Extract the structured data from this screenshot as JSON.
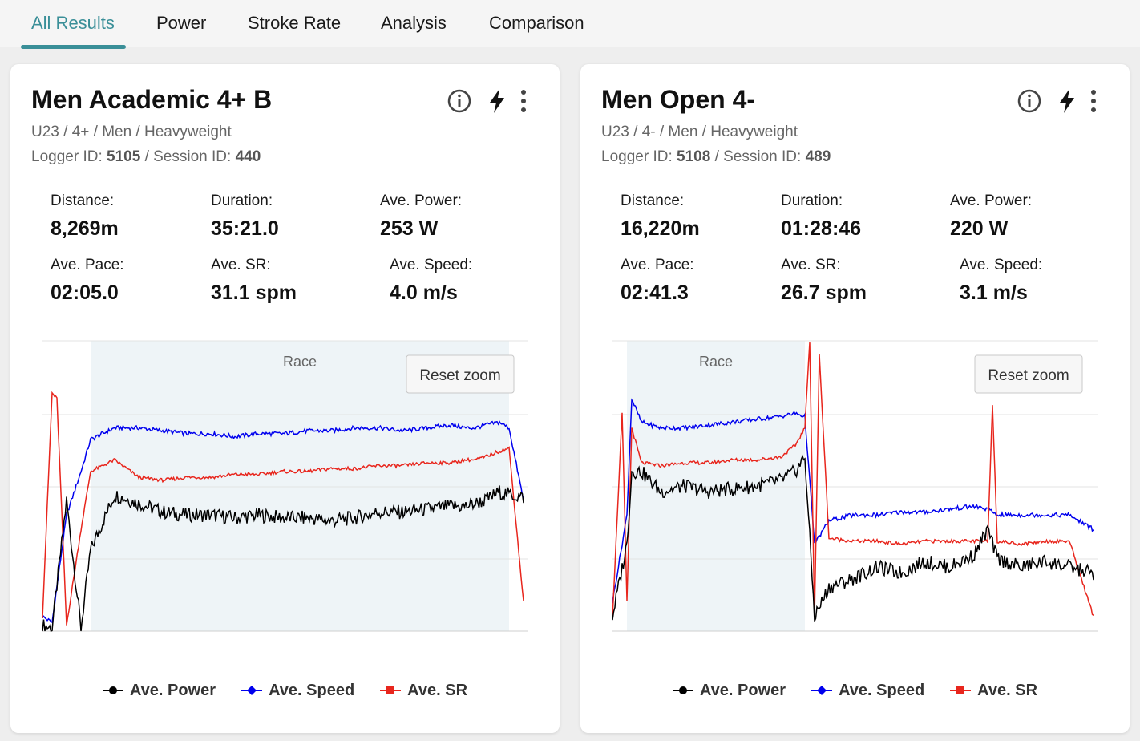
{
  "tabs": [
    {
      "label": "All Results",
      "active": true
    },
    {
      "label": "Power",
      "active": false
    },
    {
      "label": "Stroke Rate",
      "active": false
    },
    {
      "label": "Analysis",
      "active": false
    },
    {
      "label": "Comparison",
      "active": false
    }
  ],
  "colors": {
    "accent": "#3a8f98",
    "power": "#000000",
    "speed": "#0000ee",
    "sr": "#e8261d",
    "race_band": "#eef4f7"
  },
  "cards": [
    {
      "title": "Men Academic 4+ B",
      "subtitle": "U23 / 4+ / Men / Heavyweight",
      "logger_label": "Logger ID:",
      "logger_id": "5105",
      "session_label": "/ Session ID:",
      "session_id": "440",
      "icons": [
        "info-icon",
        "lightning-icon",
        "more-vert-icon"
      ],
      "stats": [
        {
          "label": "Distance:",
          "value": "8,269m"
        },
        {
          "label": "Duration:",
          "value": "35:21.0"
        },
        {
          "label": "Ave. Power:",
          "value": "253 W"
        },
        {
          "label": "Ave. Pace:",
          "value": "02:05.0"
        },
        {
          "label": "Ave. SR:",
          "value": "31.1 spm"
        },
        {
          "label": "Ave. Speed:",
          "value": "4.0 m/s"
        }
      ],
      "race_label": "Race",
      "reset_zoom_label": "Reset zoom",
      "legend": [
        "Ave. Power",
        "Ave. Speed",
        "Ave. SR"
      ]
    },
    {
      "title": "Men Open 4-",
      "subtitle": "U23 / 4- / Men / Heavyweight",
      "logger_label": "Logger ID:",
      "logger_id": "5108",
      "session_label": "/ Session ID:",
      "session_id": "489",
      "icons": [
        "info-icon",
        "lightning-icon",
        "more-vert-icon"
      ],
      "stats": [
        {
          "label": "Distance:",
          "value": "16,220m"
        },
        {
          "label": "Duration:",
          "value": "01:28:46"
        },
        {
          "label": "Ave. Power:",
          "value": "220 W"
        },
        {
          "label": "Ave. Pace:",
          "value": "02:41.3"
        },
        {
          "label": "Ave. SR:",
          "value": "26.7 spm"
        },
        {
          "label": "Ave. Speed:",
          "value": "3.1 m/s"
        }
      ],
      "race_label": "Race",
      "reset_zoom_label": "Reset zoom",
      "legend": [
        "Ave. Power",
        "Ave. Speed",
        "Ave. SR"
      ]
    }
  ],
  "chart_data": [
    {
      "type": "line",
      "series": [
        {
          "name": "Ave. Power",
          "x": [
            0.0,
            0.02,
            0.05,
            0.08,
            0.1,
            0.15,
            0.2,
            0.25,
            0.3,
            0.35,
            0.4,
            0.45,
            0.5,
            0.55,
            0.6,
            0.65,
            0.7,
            0.75,
            0.8,
            0.85,
            0.88,
            0.9,
            0.92,
            0.95,
            0.97,
            1.0
          ],
          "y": [
            0.02,
            0.01,
            0.45,
            0.01,
            0.28,
            0.47,
            0.44,
            0.41,
            0.4,
            0.4,
            0.39,
            0.4,
            0.39,
            0.39,
            0.38,
            0.39,
            0.41,
            0.41,
            0.42,
            0.43,
            0.43,
            0.44,
            0.45,
            0.48,
            0.47,
            0.46
          ]
        },
        {
          "name": "Ave. Speed",
          "x": [
            0.0,
            0.02,
            0.05,
            0.08,
            0.1,
            0.15,
            0.2,
            0.25,
            0.3,
            0.35,
            0.4,
            0.45,
            0.5,
            0.55,
            0.6,
            0.65,
            0.7,
            0.75,
            0.8,
            0.85,
            0.88,
            0.9,
            0.92,
            0.95,
            0.97,
            1.0
          ],
          "y": [
            0.05,
            0.03,
            0.4,
            0.55,
            0.66,
            0.7,
            0.7,
            0.69,
            0.68,
            0.68,
            0.67,
            0.68,
            0.68,
            0.69,
            0.69,
            0.7,
            0.7,
            0.69,
            0.7,
            0.71,
            0.7,
            0.7,
            0.71,
            0.72,
            0.7,
            0.45
          ]
        },
        {
          "name": "Ave. SR",
          "x": [
            0.0,
            0.02,
            0.03,
            0.05,
            0.08,
            0.1,
            0.15,
            0.2,
            0.25,
            0.3,
            0.35,
            0.4,
            0.45,
            0.5,
            0.55,
            0.6,
            0.65,
            0.7,
            0.75,
            0.8,
            0.85,
            0.88,
            0.9,
            0.92,
            0.95,
            0.97,
            1.0
          ],
          "y": [
            0.05,
            0.82,
            0.8,
            0.02,
            0.35,
            0.55,
            0.59,
            0.53,
            0.52,
            0.53,
            0.53,
            0.54,
            0.54,
            0.55,
            0.55,
            0.56,
            0.56,
            0.57,
            0.57,
            0.58,
            0.58,
            0.59,
            0.59,
            0.6,
            0.62,
            0.63,
            0.1
          ]
        }
      ],
      "race_range": [
        0.1,
        0.97
      ]
    },
    {
      "type": "line",
      "series": [
        {
          "name": "Ave. Power",
          "x": [
            0.0,
            0.03,
            0.04,
            0.06,
            0.1,
            0.15,
            0.2,
            0.25,
            0.3,
            0.35,
            0.38,
            0.4,
            0.42,
            0.45,
            0.5,
            0.55,
            0.6,
            0.65,
            0.7,
            0.75,
            0.78,
            0.8,
            0.85,
            0.9,
            0.95,
            1.0
          ],
          "y": [
            0.05,
            0.3,
            0.55,
            0.55,
            0.48,
            0.5,
            0.48,
            0.49,
            0.5,
            0.52,
            0.55,
            0.6,
            0.05,
            0.15,
            0.18,
            0.22,
            0.2,
            0.24,
            0.22,
            0.26,
            0.35,
            0.25,
            0.22,
            0.24,
            0.22,
            0.2
          ]
        },
        {
          "name": "Ave. Speed",
          "x": [
            0.0,
            0.03,
            0.04,
            0.06,
            0.1,
            0.15,
            0.2,
            0.25,
            0.3,
            0.35,
            0.38,
            0.4,
            0.42,
            0.45,
            0.5,
            0.55,
            0.6,
            0.65,
            0.7,
            0.75,
            0.78,
            0.8,
            0.85,
            0.9,
            0.95,
            1.0
          ],
          "y": [
            0.1,
            0.4,
            0.8,
            0.72,
            0.7,
            0.7,
            0.71,
            0.72,
            0.73,
            0.74,
            0.75,
            0.74,
            0.3,
            0.38,
            0.4,
            0.4,
            0.41,
            0.41,
            0.42,
            0.43,
            0.42,
            0.4,
            0.4,
            0.4,
            0.4,
            0.35
          ]
        },
        {
          "name": "Ave. SR",
          "x": [
            0.0,
            0.02,
            0.03,
            0.04,
            0.06,
            0.1,
            0.15,
            0.2,
            0.25,
            0.3,
            0.35,
            0.38,
            0.4,
            0.41,
            0.42,
            0.43,
            0.45,
            0.5,
            0.55,
            0.6,
            0.65,
            0.7,
            0.75,
            0.78,
            0.79,
            0.8,
            0.85,
            0.9,
            0.95,
            1.0
          ],
          "y": [
            0.05,
            0.75,
            0.1,
            0.7,
            0.58,
            0.57,
            0.58,
            0.58,
            0.59,
            0.59,
            0.6,
            0.64,
            0.7,
            1.0,
            0.05,
            0.95,
            0.32,
            0.31,
            0.31,
            0.3,
            0.31,
            0.31,
            0.31,
            0.31,
            0.78,
            0.31,
            0.3,
            0.31,
            0.31,
            0.05
          ]
        }
      ],
      "race_range": [
        0.03,
        0.4
      ]
    }
  ]
}
